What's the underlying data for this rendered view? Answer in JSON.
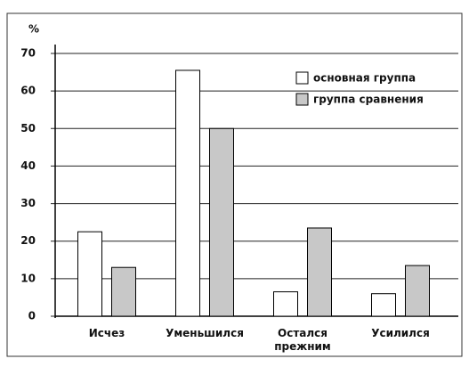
{
  "chart_data": {
    "type": "bar",
    "y_label": "%",
    "categories": [
      "Исчез",
      "Уменьшился",
      "Остался\nпрежним",
      "Усилился"
    ],
    "series": [
      {
        "name": "основная группа",
        "color": "#ffffff",
        "values": [
          22.5,
          65.5,
          6.5,
          6
        ]
      },
      {
        "name": "группа сравнения",
        "color": "#c8c8c8",
        "values": [
          13,
          50,
          23.5,
          13.5
        ]
      }
    ],
    "ylim": [
      0,
      70
    ],
    "yticks": [
      0,
      10,
      20,
      30,
      40,
      50,
      60,
      70
    ],
    "grid": true,
    "legend": "upper right"
  }
}
